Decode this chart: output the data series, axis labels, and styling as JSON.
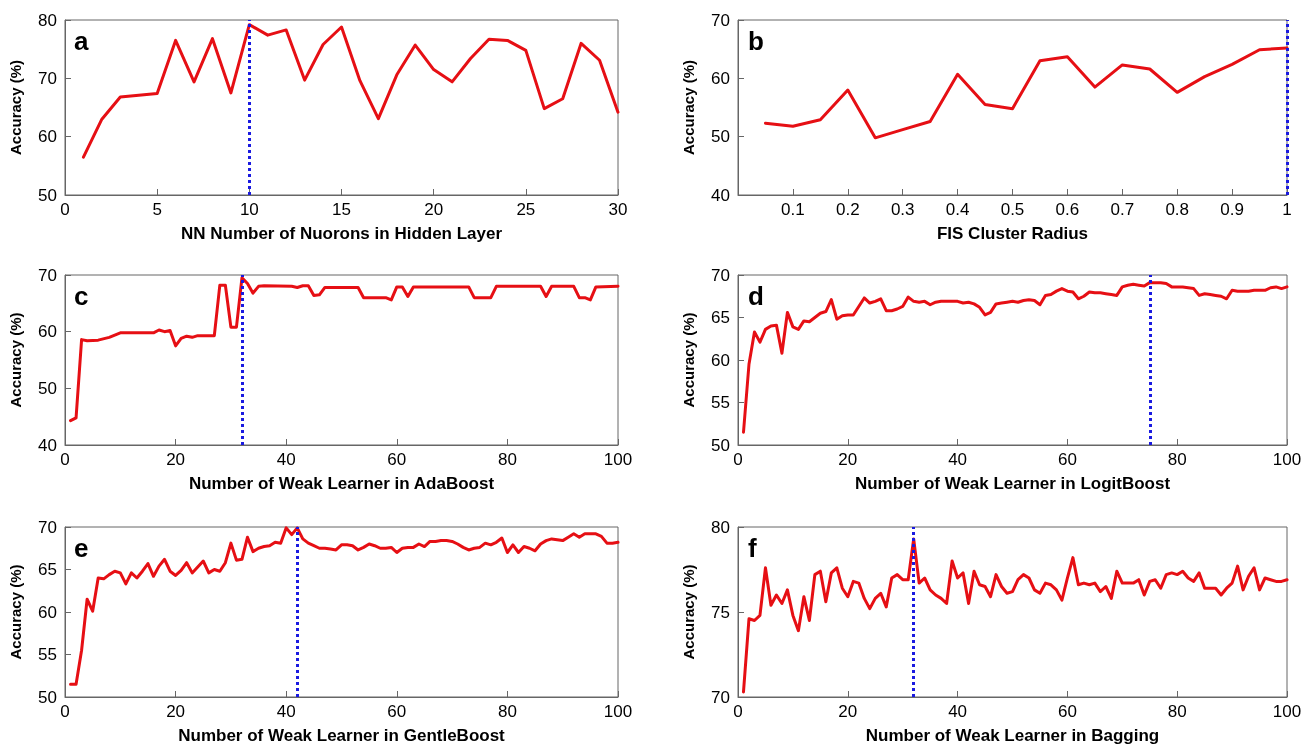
{
  "chart_data": [
    {
      "type": "line",
      "xlabel": "NN Number of Nuorons in Hidden Layer",
      "ylabel": "Accuracy (%)",
      "annotations": [
        "a"
      ],
      "color": "#e60f14",
      "line_style": "solid",
      "marker": "none",
      "x": [
        1,
        2,
        3,
        4,
        5,
        6,
        7,
        8,
        9,
        10,
        11,
        12,
        13,
        14,
        15,
        16,
        17,
        18,
        19,
        20,
        21,
        22,
        23,
        24,
        25,
        26,
        27,
        28,
        29,
        30
      ],
      "values": [
        56.5,
        63,
        66.8,
        67.1,
        67.4,
        76.5,
        69.4,
        76.8,
        67.5,
        79.2,
        77.4,
        78.3,
        69.7,
        75.8,
        78.8,
        69.6,
        63.1,
        70.6,
        75.7,
        71.5,
        69.4,
        73.4,
        76.7,
        76.5,
        74.8,
        64.8,
        66.5,
        76,
        73.1,
        64.2
      ],
      "xlim": [
        0,
        30
      ],
      "xticks": [
        0,
        5,
        10,
        15,
        20,
        25,
        30
      ],
      "ylim": [
        50,
        80
      ],
      "yticks": [
        50,
        60,
        70,
        80
      ],
      "ref_lines": [
        {
          "axis": "x",
          "value": 10,
          "color": "#1a1ae0",
          "line_style": "dotted"
        }
      ]
    },
    {
      "type": "line",
      "xlabel": "FIS Cluster Radius",
      "ylabel": "Accuracy (%)",
      "annotations": [
        "b"
      ],
      "color": "#e60f14",
      "line_style": "solid",
      "marker": "none",
      "x": [
        0.05,
        0.1,
        0.15,
        0.2,
        0.25,
        0.3,
        0.35,
        0.4,
        0.45,
        0.5,
        0.55,
        0.6,
        0.65,
        0.7,
        0.75,
        0.8,
        0.85,
        0.9,
        0.95,
        1
      ],
      "values": [
        52.3,
        51.8,
        52.9,
        58,
        49.8,
        51.2,
        52.6,
        60.7,
        55.5,
        54.8,
        63,
        63.7,
        58.5,
        62.3,
        61.6,
        57.6,
        60.3,
        62.4,
        64.9,
        65.2
      ],
      "xlim": [
        0,
        1
      ],
      "xticks": [
        0.1,
        0.2,
        0.3,
        0.4,
        0.5,
        0.6,
        0.7,
        0.8,
        0.9,
        1
      ],
      "ylim": [
        40,
        70
      ],
      "yticks": [
        40,
        50,
        60,
        70
      ],
      "ref_lines": [
        {
          "axis": "x",
          "value": 1,
          "color": "#1a1ae0",
          "line_style": "dotted"
        }
      ]
    },
    {
      "type": "line",
      "xlabel": "Number of Weak Learner in AdaBoost",
      "ylabel": "Accuracy (%)",
      "annotations": [
        "c"
      ],
      "color": "#e60f14",
      "line_style": "solid",
      "marker": "none",
      "x": [
        1,
        2,
        3,
        4,
        6,
        8,
        10,
        16,
        17,
        18,
        19,
        20,
        21,
        22,
        23,
        24,
        27,
        28,
        29,
        30,
        31,
        32,
        33,
        34,
        35,
        36,
        41,
        42,
        43,
        44,
        45,
        46,
        47,
        53,
        54,
        58,
        59,
        60,
        61,
        62,
        63,
        73,
        74,
        77,
        78,
        86,
        87,
        88,
        92,
        93,
        94,
        95,
        96,
        100
      ],
      "values": [
        44.3,
        44.8,
        58.6,
        58.4,
        58.5,
        59,
        59.8,
        59.8,
        60.3,
        60,
        60.2,
        57.5,
        58.8,
        59.2,
        59,
        59.3,
        59.3,
        68.2,
        68.2,
        60.8,
        60.8,
        69.5,
        68.5,
        66.8,
        68,
        68.1,
        68,
        67.8,
        68.1,
        68.1,
        66.4,
        66.5,
        67.8,
        67.8,
        66,
        66,
        65.6,
        67.9,
        67.9,
        66.2,
        67.9,
        67.9,
        66,
        66,
        68,
        68,
        66.2,
        68,
        68,
        66,
        66,
        65.6,
        67.9,
        68
      ],
      "xlim": [
        0,
        100
      ],
      "xticks": [
        0,
        20,
        40,
        60,
        80,
        100
      ],
      "ylim": [
        40,
        70
      ],
      "yticks": [
        40,
        50,
        60,
        70
      ],
      "ref_lines": [
        {
          "axis": "x",
          "value": 32,
          "color": "#1a1ae0",
          "line_style": "dotted"
        }
      ]
    },
    {
      "type": "line",
      "xlabel": "Number of Weak Learner in LogitBoost",
      "ylabel": "Accuracy (%)",
      "annotations": [
        "d"
      ],
      "color": "#e60f14",
      "line_style": "solid",
      "marker": "none",
      "x": [
        1,
        2,
        3,
        4,
        5,
        6,
        7,
        8,
        9,
        10,
        11,
        12,
        13,
        14,
        15,
        16,
        17,
        18,
        19,
        20,
        21,
        22,
        23,
        24,
        25,
        26,
        27,
        28,
        29,
        30,
        31,
        32,
        33,
        34,
        35,
        36,
        37,
        38,
        39,
        40,
        41,
        42,
        43,
        44,
        45,
        46,
        47,
        48,
        49,
        50,
        51,
        52,
        53,
        54,
        55,
        56,
        57,
        58,
        59,
        60,
        61,
        62,
        63,
        64,
        65,
        66,
        67,
        68,
        69,
        70,
        71,
        72,
        73,
        74,
        75,
        76,
        77,
        78,
        79,
        80,
        81,
        82,
        83,
        84,
        85,
        86,
        87,
        88,
        89,
        90,
        91,
        92,
        93,
        94,
        95,
        96,
        97,
        98,
        99,
        100
      ],
      "values": [
        51.5,
        59.5,
        63.3,
        62.1,
        63.6,
        64,
        64.1,
        60.8,
        65.6,
        63.9,
        63.6,
        64.6,
        64.5,
        65,
        65.5,
        65.7,
        67.1,
        64.8,
        65.2,
        65.3,
        65.3,
        66.3,
        67.3,
        66.7,
        66.9,
        67.2,
        65.8,
        65.8,
        66,
        66.3,
        67.4,
        66.9,
        66.8,
        66.9,
        66.5,
        66.8,
        66.9,
        66.9,
        66.9,
        66.9,
        66.7,
        66.8,
        66.6,
        66.2,
        65.3,
        65.6,
        66.6,
        66.7,
        66.8,
        66.9,
        66.8,
        67,
        67.1,
        67,
        66.5,
        67.6,
        67.7,
        68.1,
        68.4,
        68.1,
        68,
        67.2,
        67.5,
        68,
        67.9,
        67.9,
        67.8,
        67.7,
        67.6,
        68.6,
        68.8,
        68.9,
        68.8,
        68.7,
        69.1,
        69.1,
        69.1,
        69,
        68.6,
        68.6,
        68.6,
        68.5,
        68.4,
        67.6,
        67.8,
        67.7,
        67.6,
        67.5,
        67.2,
        68.2,
        68.1,
        68.1,
        68.1,
        68.2,
        68.2,
        68.2,
        68.5,
        68.6,
        68.4,
        68.6
      ],
      "xlim": [
        0,
        100
      ],
      "xticks": [
        0,
        20,
        40,
        60,
        80,
        100
      ],
      "ylim": [
        50,
        70
      ],
      "yticks": [
        50,
        55,
        60,
        65,
        70
      ],
      "ref_lines": [
        {
          "axis": "x",
          "value": 75,
          "color": "#1a1ae0",
          "line_style": "dotted"
        }
      ]
    },
    {
      "type": "line",
      "xlabel": "Number of Weak Learner in GentleBoost",
      "ylabel": "Accuracy (%)",
      "annotations": [
        "e"
      ],
      "color": "#e60f14",
      "line_style": "solid",
      "marker": "none",
      "x": [
        1,
        2,
        3,
        4,
        5,
        6,
        7,
        8,
        9,
        10,
        11,
        12,
        13,
        14,
        15,
        16,
        17,
        18,
        19,
        20,
        21,
        22,
        23,
        24,
        25,
        26,
        27,
        28,
        29,
        30,
        31,
        32,
        33,
        34,
        35,
        36,
        37,
        38,
        39,
        40,
        41,
        42,
        43,
        44,
        45,
        46,
        47,
        48,
        49,
        50,
        51,
        52,
        53,
        54,
        55,
        56,
        57,
        58,
        59,
        60,
        61,
        62,
        63,
        64,
        65,
        66,
        67,
        68,
        69,
        70,
        71,
        72,
        73,
        74,
        75,
        76,
        77,
        78,
        79,
        80,
        81,
        82,
        83,
        84,
        85,
        86,
        87,
        88,
        89,
        90,
        91,
        92,
        93,
        94,
        95,
        96,
        97,
        98,
        99,
        100
      ],
      "values": [
        51.5,
        51.5,
        55.5,
        61.5,
        60.1,
        64,
        63.9,
        64.4,
        64.8,
        64.6,
        63.3,
        64.6,
        64,
        64.8,
        65.7,
        64.2,
        65.4,
        66.2,
        64.8,
        64.3,
        64.9,
        65.8,
        64.6,
        65.3,
        66,
        64.6,
        65,
        64.8,
        65.8,
        68.1,
        66.1,
        66.2,
        68.8,
        67.1,
        67.5,
        67.7,
        67.8,
        68.2,
        68.1,
        69.9,
        69.1,
        69.9,
        68.6,
        68.1,
        67.8,
        67.5,
        67.5,
        67.4,
        67.3,
        67.9,
        67.9,
        67.8,
        67.3,
        67.6,
        68,
        67.8,
        67.5,
        67.5,
        67.6,
        67,
        67.5,
        67.6,
        67.6,
        68,
        67.7,
        68.3,
        68.3,
        68.4,
        68.4,
        68.3,
        68,
        67.6,
        67.3,
        67.5,
        67.6,
        68.1,
        67.9,
        68.2,
        68.7,
        67,
        67.9,
        67,
        67.7,
        67.5,
        67.2,
        68,
        68.4,
        68.6,
        68.5,
        68.4,
        68.8,
        69.2,
        68.8,
        69.2,
        69.2,
        69.2,
        68.9,
        68.1,
        68.1,
        68.2
      ],
      "xlim": [
        0,
        100
      ],
      "xticks": [
        0,
        20,
        40,
        60,
        80,
        100
      ],
      "ylim": [
        50,
        70
      ],
      "yticks": [
        50,
        55,
        60,
        65,
        70
      ],
      "ref_lines": [
        {
          "axis": "x",
          "value": 42,
          "color": "#1a1ae0",
          "line_style": "dotted"
        }
      ]
    },
    {
      "type": "line",
      "xlabel": "Number of Weak Learner in Bagging",
      "ylabel": "Accuracy (%)",
      "annotations": [
        "f"
      ],
      "color": "#e60f14",
      "line_style": "solid",
      "marker": "none",
      "x": [
        1,
        2,
        3,
        4,
        5,
        6,
        7,
        8,
        9,
        10,
        11,
        12,
        13,
        14,
        15,
        16,
        17,
        18,
        19,
        20,
        21,
        22,
        23,
        24,
        25,
        26,
        27,
        28,
        29,
        30,
        31,
        32,
        33,
        34,
        35,
        36,
        37,
        38,
        39,
        40,
        41,
        42,
        43,
        44,
        45,
        46,
        47,
        48,
        49,
        50,
        51,
        52,
        53,
        54,
        55,
        56,
        57,
        58,
        59,
        60,
        61,
        62,
        63,
        64,
        65,
        66,
        67,
        68,
        69,
        70,
        71,
        72,
        73,
        74,
        75,
        76,
        77,
        78,
        79,
        80,
        81,
        82,
        83,
        84,
        85,
        86,
        87,
        88,
        89,
        90,
        91,
        92,
        93,
        94,
        95,
        96,
        97,
        98,
        99,
        100
      ],
      "values": [
        70.3,
        74.6,
        74.5,
        74.8,
        77.6,
        75.4,
        76,
        75.5,
        76.3,
        74.8,
        73.9,
        75.9,
        74.5,
        77.2,
        77.4,
        75.6,
        77.3,
        77.6,
        76.4,
        75.9,
        76.8,
        76.7,
        75.8,
        75.2,
        75.8,
        76.1,
        75.3,
        77,
        77.2,
        76.9,
        76.9,
        79.3,
        76.7,
        77,
        76.3,
        76,
        75.8,
        75.5,
        78,
        77,
        77.3,
        75.5,
        77.4,
        76.6,
        76.5,
        75.9,
        77.2,
        76.5,
        76.1,
        76.2,
        76.9,
        77.2,
        77,
        76.3,
        76.1,
        76.7,
        76.6,
        76.3,
        75.7,
        77,
        78.2,
        76.6,
        76.7,
        76.6,
        76.7,
        76.2,
        76.5,
        75.8,
        77.4,
        76.7,
        76.7,
        76.7,
        76.9,
        76,
        76.8,
        76.9,
        76.4,
        77.2,
        77.3,
        77.2,
        77.4,
        77,
        76.8,
        77.3,
        76.4,
        76.4,
        76.4,
        76,
        76.4,
        76.7,
        77.7,
        76.3,
        77.1,
        77.6,
        76.3,
        77,
        76.9,
        76.8,
        76.8,
        76.9
      ],
      "xlim": [
        0,
        100
      ],
      "xticks": [
        0,
        20,
        40,
        60,
        80,
        100
      ],
      "ylim": [
        70,
        80
      ],
      "yticks": [
        70,
        75,
        80
      ],
      "ref_lines": [
        {
          "axis": "x",
          "value": 32,
          "color": "#1a1ae0",
          "line_style": "dotted"
        }
      ]
    }
  ]
}
